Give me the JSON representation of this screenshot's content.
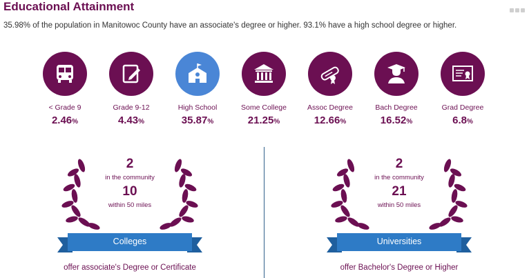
{
  "header": {
    "title": "Educational Attainment",
    "summary": "35.98% of the population in Manitowoc County have an associate's degree or higher. 93.1% have a high school degree or higher."
  },
  "colors": {
    "primary": "#6b0f52",
    "highlight": "#4a86d6",
    "ribbon": "#2e7bc6",
    "divider": "#2f5f8a"
  },
  "levels": [
    {
      "label": "< Grade 9",
      "value": "2.46",
      "unit": "%",
      "icon": "school-bus-icon"
    },
    {
      "label": "Grade 9-12",
      "value": "4.43",
      "unit": "%",
      "icon": "notebook-pencil-icon"
    },
    {
      "label": "High School",
      "value": "35.87",
      "unit": "%",
      "icon": "school-building-icon"
    },
    {
      "label": "Some College",
      "value": "21.25",
      "unit": "%",
      "icon": "university-building-icon"
    },
    {
      "label": "Assoc Degree",
      "value": "12.66",
      "unit": "%",
      "icon": "diploma-scroll-icon"
    },
    {
      "label": "Bach Degree",
      "value": "16.52",
      "unit": "%",
      "icon": "graduate-icon"
    },
    {
      "label": "Grad Degree",
      "value": "6.8",
      "unit": "%",
      "icon": "certificate-icon"
    }
  ],
  "colleges": {
    "community_count": "2",
    "community_label": "in the community",
    "nearby_count": "10",
    "nearby_label": "within 50 miles",
    "ribbon": "Colleges",
    "caption": "offer associate's Degree or Certificate"
  },
  "universities": {
    "community_count": "2",
    "community_label": "in the community",
    "nearby_count": "21",
    "nearby_label": "within 50 miles",
    "ribbon": "Universities",
    "caption": "offer Bachelor's Degree or Higher"
  }
}
